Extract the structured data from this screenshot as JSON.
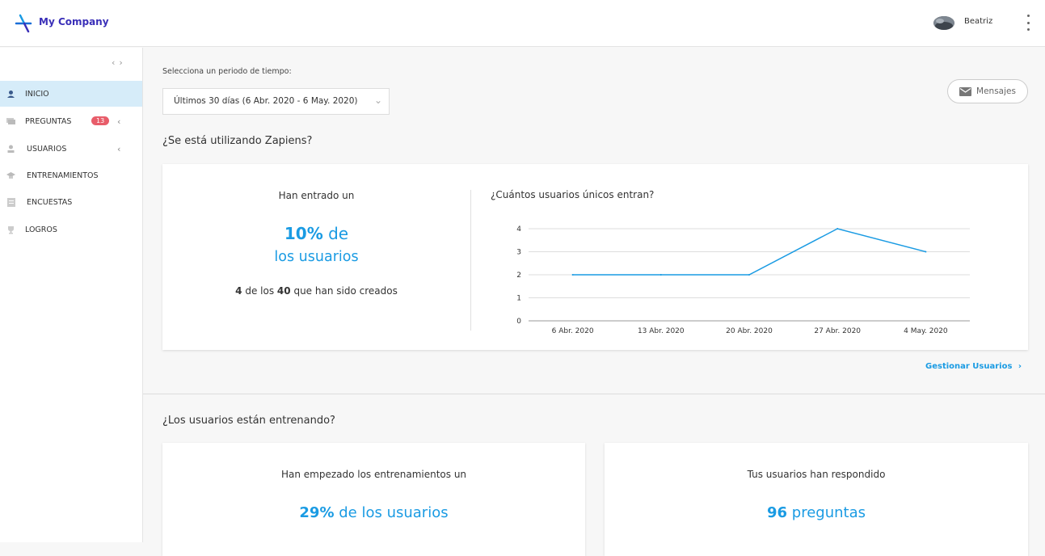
{
  "header": {
    "brand": "My Company",
    "user_name": "Beatriz"
  },
  "sidebar": {
    "items": [
      {
        "label": "INICIO",
        "icon": "user-circle-icon",
        "active": true
      },
      {
        "label": "PREGUNTAS",
        "icon": "chat-icon",
        "badge": "13",
        "has_chevron": true
      },
      {
        "label": "USUARIOS",
        "icon": "person-icon",
        "has_chevron": true
      },
      {
        "label": "ENTRENAMIENTOS",
        "icon": "graduation-cap-icon"
      },
      {
        "label": "ENCUESTAS",
        "icon": "survey-icon"
      },
      {
        "label": "LOGROS",
        "icon": "trophy-icon"
      }
    ]
  },
  "period": {
    "label": "Selecciona un periodo de tiempo:",
    "selected": "Últimos 30 días (6 Abr. 2020 - 6 May. 2020)"
  },
  "messages_button": "Mensajes",
  "usage": {
    "title": "¿Se está utilizando Zapiens?",
    "intro": "Han entrado un",
    "percent": "10%",
    "percent_suffix": "de",
    "percent_line2": "los usuarios",
    "count": "4",
    "count_mid": "de los",
    "total": "40",
    "count_suffix": "que han sido creados",
    "manage_link": "Gestionar Usuarios"
  },
  "chart_data": {
    "type": "line",
    "title": "¿Cuántos usuarios únicos entran?",
    "categories": [
      "6 Abr. 2020",
      "13 Abr. 2020",
      "20 Abr. 2020",
      "27 Abr. 2020",
      "4 May. 2020"
    ],
    "values": [
      2,
      2,
      2,
      4,
      3
    ],
    "ylim": [
      0,
      4
    ],
    "yticks": [
      "0",
      "1",
      "2",
      "3",
      "4"
    ],
    "grid": true,
    "color": "#1a9be3"
  },
  "training": {
    "title": "¿Los usuarios están entrenando?",
    "card1_intro": "Han empezado los entrenamientos un",
    "card1_percent": "29%",
    "card1_suffix": "de los usuarios",
    "card2_intro": "Tus usuarios han respondido",
    "card2_value": "96",
    "card2_suffix": "preguntas"
  }
}
